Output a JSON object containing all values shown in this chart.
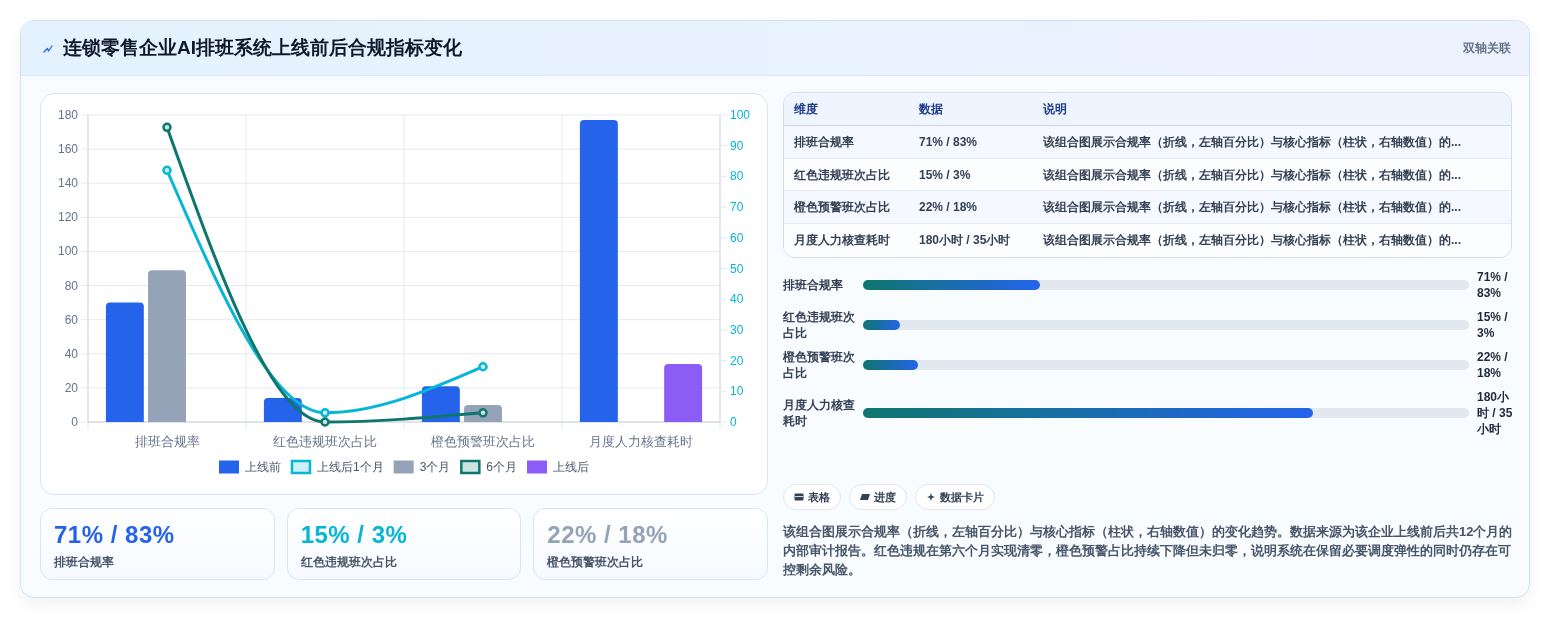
{
  "chart_data": [
    {
      "type": "bar",
      "title": "连锁零售企业AI排班系统上线前后合规指标变化",
      "annotations": [
        "双轴关联"
      ],
      "categories": [
        "排班合规率",
        "红色违规班次占比",
        "橙色预警班次占比",
        "月度人力核查耗时"
      ],
      "series": [
        {
          "name": "上线前",
          "type": "bar",
          "color": "#2563eb",
          "values": [
            70,
            14,
            21,
            177
          ]
        },
        {
          "name": "上线后1个月",
          "type": "line",
          "axis": "y2",
          "color": "#06b6d4",
          "values": [
            82,
            3,
            18,
            null
          ]
        },
        {
          "name": "3个月",
          "type": "bar",
          "color": "#94a3b8",
          "values": [
            89,
            null,
            10,
            null
          ]
        },
        {
          "name": "6个月",
          "type": "line",
          "axis": "y2",
          "color": "#0f766e",
          "values": [
            96,
            0,
            3,
            null
          ]
        },
        {
          "name": "上线后",
          "type": "bar",
          "color": "#8b5cf6",
          "values": [
            null,
            null,
            null,
            34
          ]
        }
      ],
      "ylim": [
        0,
        180
      ],
      "yticks": [
        0,
        20,
        40,
        60,
        80,
        100,
        120,
        140,
        160,
        180
      ],
      "y2lim": [
        0,
        100
      ],
      "y2ticks": [
        0,
        10,
        20,
        30,
        40,
        50,
        60,
        70,
        80,
        90,
        100
      ],
      "grid": true,
      "legend": "bottom",
      "marker": "circle",
      "line_style": "solid"
    },
    {
      "type": "other",
      "annotations": [
        "维度",
        "数据",
        "说明",
        "排班合规率",
        "71% / 83%",
        "该组合图展示合规率（折线，左轴百分比）与核心指标（柱状，右轴数值）的...",
        "红色违规班次占比",
        "15% / 3%",
        "该组合图展示合规率（折线，左轴百分比）与核心指标（柱状，右轴数值）的...",
        "橙色预警班次占比",
        "22% / 18%",
        "该组合图展示合规率（折线，左轴百分比）与核心指标（柱状，右轴数值）的...",
        "月度人力核查耗时",
        "180小时 / 35小时",
        "该组合图展示合规率（折线，左轴百分比）与核心指标（柱状，右轴数值）的..."
      ]
    },
    {
      "type": "bar",
      "orientation": "horizontal",
      "categories": [
        "排班合规率",
        "红色违规班次占比",
        "橙色预警班次占比",
        "月度人力核查耗时"
      ],
      "values": [
        71,
        15,
        22,
        180
      ],
      "value_labels": [
        "71% / 83%",
        "15% / 3%",
        "22% / 18%",
        "180小时 / 35小时"
      ],
      "color": "#2563eb"
    },
    {
      "type": "other",
      "annotations": [
        "71% / 83%",
        "排班合规率",
        "15% / 3%",
        "红色违规班次占比",
        "22% / 18%",
        "橙色预警班次占比"
      ],
      "colors": [
        "#2563eb",
        "#06b6d4",
        "#94a3b8"
      ]
    },
    {
      "type": "other",
      "annotations": [
        "表格",
        "进度",
        "数据卡片",
        "该组合图展示合规率（折线，左轴百分比）与核心指标（柱状，右轴数值）的变化趋势。数据来源为该企业上线前后共12个月的内部审计报告。红色违规在第六个月实现清零，橙色预警占比持续下降但未归零，说明系统在保留必要调度弹性的同时仍存在可控剩余风险。"
      ]
    }
  ]
}
